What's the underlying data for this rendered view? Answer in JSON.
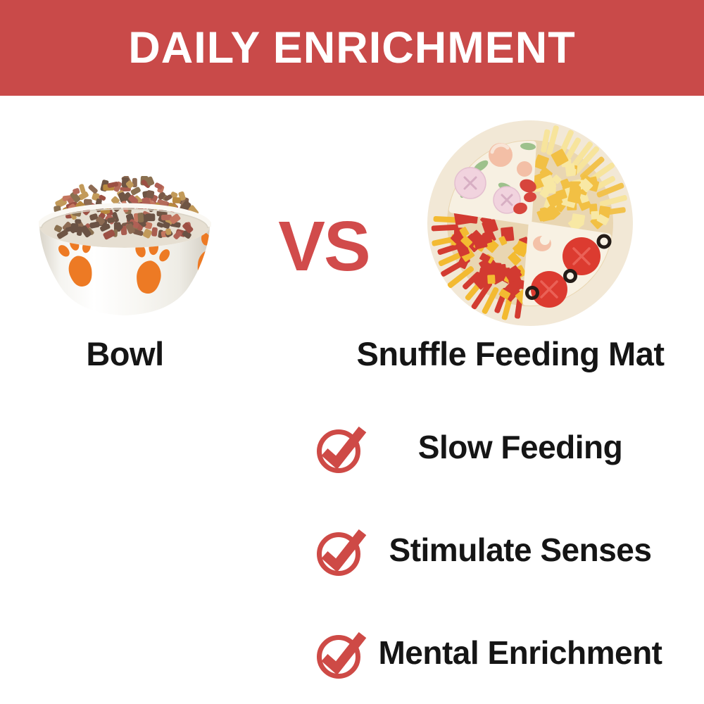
{
  "header": {
    "title": "DAILY ENRICHMENT"
  },
  "comparison": {
    "vs_label": "VS",
    "left": {
      "label": "Bowl",
      "image": "dog-bowl-with-kibble-photo"
    },
    "right": {
      "label": "Snuffle Feeding Mat",
      "image": "pizza-snuffle-feeding-mat-photo"
    }
  },
  "benefits": {
    "icon": "check-circle-icon",
    "items": [
      {
        "label": "Slow Feeding"
      },
      {
        "label": "Stimulate Senses"
      },
      {
        "label": "Mental Enrichment"
      }
    ]
  },
  "colors": {
    "banner_red": "#C94A49",
    "vs_red": "#D14B4B",
    "check_red": "#CE4A46",
    "text_black": "#151515",
    "paw_orange": "#ED7A24",
    "background": "#FFFFFF"
  }
}
